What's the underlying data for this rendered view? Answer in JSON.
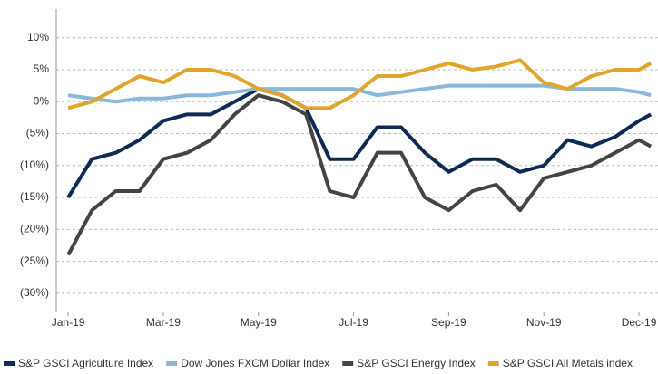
{
  "chart_data": {
    "type": "line",
    "x": [
      0,
      0.5,
      1,
      1.5,
      2,
      2.5,
      3,
      3.5,
      4,
      4.5,
      5,
      5.5,
      6,
      6.5,
      7,
      7.5,
      8,
      8.5,
      9,
      9.5,
      10,
      10.5,
      11,
      11.5,
      12,
      12.25
    ],
    "series": [
      {
        "name": "S&P GSCI Agriculture Index",
        "color": "#0d2a52",
        "values": [
          -15,
          -9,
          -8,
          -6,
          -3,
          -2,
          -2,
          0,
          2,
          1,
          -1,
          -9,
          -9,
          -4,
          -4,
          -8,
          -11,
          -9,
          -9,
          -11,
          -10,
          -6,
          -7,
          -5.5,
          -3,
          -2
        ]
      },
      {
        "name": "Dow Jones FXCM Dollar Index",
        "color": "#8ab8dc",
        "values": [
          1,
          0.5,
          0,
          0.5,
          0.5,
          1,
          1,
          1.5,
          2,
          2,
          2,
          2,
          2,
          1,
          1.5,
          2,
          2.5,
          2.5,
          2.5,
          2.5,
          2.5,
          2,
          2,
          2,
          1.5,
          1
        ]
      },
      {
        "name": "S&P GSCI Energy Index",
        "color": "#444444",
        "values": [
          -24,
          -17,
          -14,
          -14,
          -9,
          -8,
          -6,
          -2,
          1,
          0,
          -2,
          -14,
          -15,
          -8,
          -8,
          -15,
          -17,
          -14,
          -13,
          -17,
          -12,
          -11,
          -10,
          -8,
          -6,
          -7
        ]
      },
      {
        "name": "S&P GSCI All Metals index",
        "color": "#e0a52a",
        "values": [
          -1,
          0,
          2,
          4,
          3,
          5,
          5,
          4,
          2,
          1,
          -1,
          -1,
          1,
          4,
          4,
          5,
          6,
          5,
          5.5,
          6.5,
          3,
          2,
          4,
          5,
          5,
          6
        ]
      }
    ],
    "xlim": [
      -0.25,
      12.4
    ],
    "xticks": [
      {
        "value": 0,
        "label": "Jan-19"
      },
      {
        "value": 2,
        "label": "Mar-19"
      },
      {
        "value": 4,
        "label": "May-19"
      },
      {
        "value": 6,
        "label": "Jul-19"
      },
      {
        "value": 8,
        "label": "Sep-19"
      },
      {
        "value": 10,
        "label": "Nov-19"
      },
      {
        "value": 12,
        "label": "Dec-19"
      }
    ],
    "ylim": [
      -33,
      14.5
    ],
    "yticks": [
      {
        "value": 10,
        "label": "10%"
      },
      {
        "value": 5,
        "label": "5%"
      },
      {
        "value": 0,
        "label": "0%"
      },
      {
        "value": -5,
        "label": "(5%)"
      },
      {
        "value": -10,
        "label": "(10%)"
      },
      {
        "value": -15,
        "label": "(15%)"
      },
      {
        "value": -20,
        "label": "(20%)"
      },
      {
        "value": -25,
        "label": "(25%)"
      },
      {
        "value": -30,
        "label": "(30%)"
      }
    ],
    "grid": true
  }
}
